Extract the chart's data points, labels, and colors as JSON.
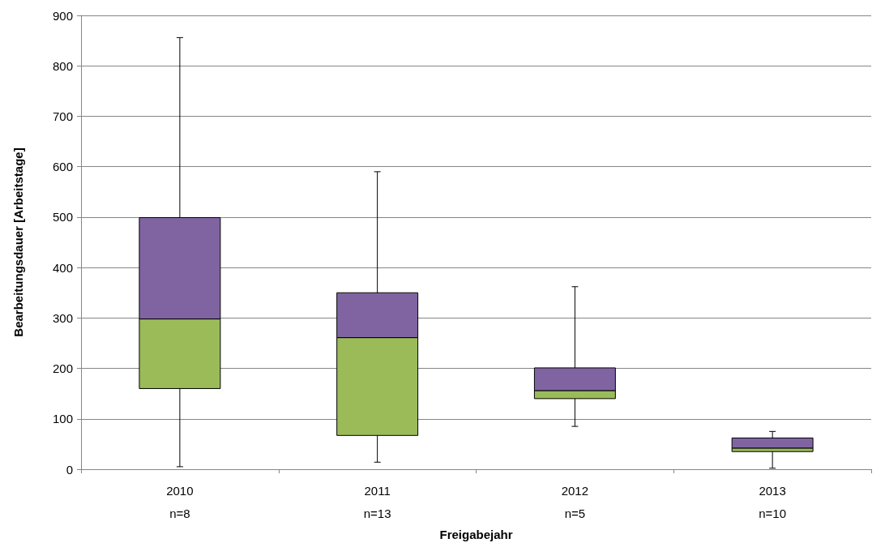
{
  "chart_data": {
    "type": "box",
    "xlabel": "Freigabejahr",
    "ylabel": "Bearbeitungsdauer [Arbeitstage]",
    "categories": [
      "2010\nn=8",
      "2011\nn=13",
      "2012\nn=5",
      "2013\nn=10"
    ],
    "boxes": [
      {
        "low": 5,
        "q1": 160,
        "median": 298,
        "q3": 499,
        "high": 856
      },
      {
        "low": 14,
        "q1": 67,
        "median": 261,
        "q3": 350,
        "high": 590
      },
      {
        "low": 85,
        "q1": 140,
        "median": 156,
        "q3": 201,
        "high": 362
      },
      {
        "low": 2,
        "q1": 35,
        "median": 42,
        "q3": 62,
        "high": 75
      }
    ],
    "colors": [
      "#9bbb59",
      "#9bbb59",
      "#9bbb59",
      "#9bbb59"
    ],
    "color": "#8064a2",
    "ylim": [
      0,
      900
    ],
    "yticks": [
      0,
      100,
      200,
      300,
      400,
      500,
      600,
      700,
      800,
      900
    ],
    "grid": "y"
  }
}
